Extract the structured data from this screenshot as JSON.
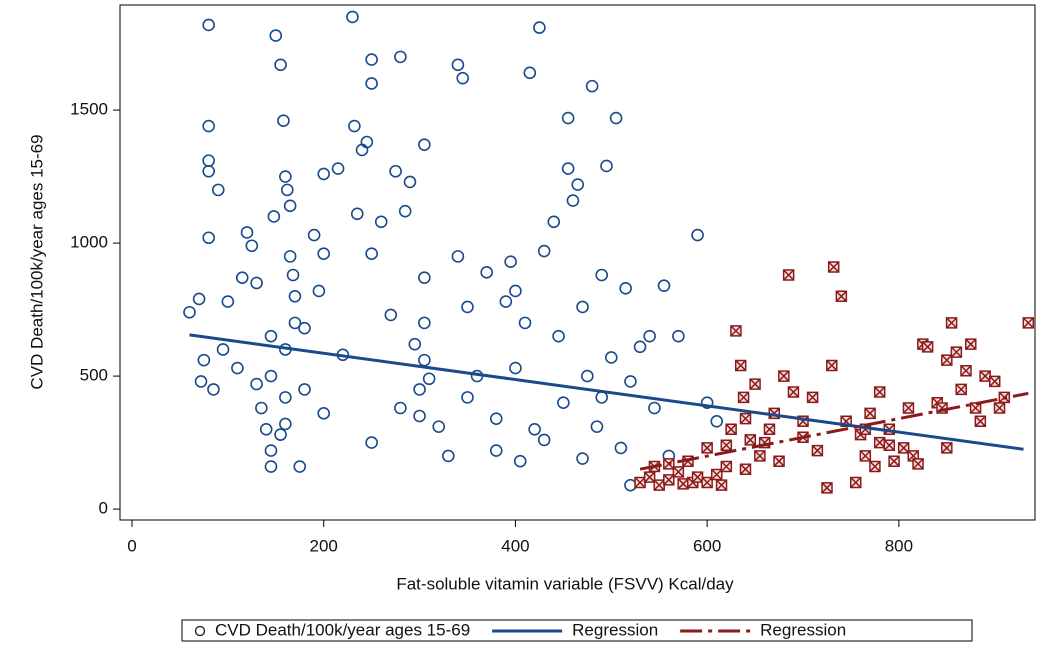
{
  "chart_data": {
    "type": "scatter",
    "xlabel": "Fat-soluble vitamin variable (FSVV) Kcal/day",
    "ylabel": "CVD Death/100k/year ages 15-69",
    "xlim": [
      -12.5,
      942
    ],
    "ylim": [
      -41,
      1895
    ],
    "xticks": [
      0,
      200,
      400,
      600,
      800
    ],
    "yticks": [
      0,
      500,
      1000,
      1500
    ],
    "legend": "bottom",
    "series": [
      {
        "name": "CVD Death/100k/year ages 15-69",
        "kind": "scatter",
        "marker": "circle",
        "color": "#1a4a8a",
        "x": [
          80,
          80,
          80,
          80,
          90,
          80,
          60,
          70,
          75,
          72,
          85,
          95,
          100,
          110,
          120,
          125,
          130,
          135,
          140,
          145,
          145,
          145,
          145,
          148,
          150,
          155,
          158,
          160,
          162,
          165,
          165,
          168,
          170,
          170,
          160,
          160,
          160,
          155,
          175,
          180,
          190,
          195,
          200,
          200,
          215,
          230,
          232,
          235,
          240,
          245,
          250,
          250,
          250,
          260,
          270,
          275,
          280,
          285,
          290,
          295,
          300,
          300,
          305,
          305,
          305,
          305,
          310,
          320,
          330,
          340,
          345,
          340,
          350,
          360,
          370,
          380,
          390,
          395,
          400,
          400,
          405,
          410,
          415,
          420,
          425,
          430,
          440,
          445,
          450,
          455,
          455,
          460,
          465,
          470,
          475,
          480,
          485,
          490,
          495,
          500,
          505,
          510,
          515,
          520,
          520,
          530,
          540,
          545,
          555,
          560,
          570,
          590,
          600,
          610,
          250,
          280,
          220,
          180,
          130,
          115,
          200,
          350,
          430,
          470,
          380,
          490
        ],
        "values": [
          1820,
          1440,
          1310,
          1270,
          1200,
          1020,
          740,
          790,
          560,
          480,
          450,
          600,
          780,
          530,
          1040,
          990,
          470,
          380,
          300,
          220,
          160,
          500,
          650,
          1100,
          1780,
          1670,
          1460,
          1250,
          1200,
          1140,
          950,
          880,
          800,
          700,
          600,
          420,
          320,
          280,
          160,
          450,
          1030,
          820,
          360,
          1260,
          1280,
          1850,
          1440,
          1110,
          1350,
          1380,
          1690,
          1600,
          960,
          1080,
          730,
          1270,
          1700,
          1120,
          1230,
          620,
          450,
          350,
          1370,
          870,
          700,
          560,
          490,
          310,
          200,
          1670,
          1620,
          950,
          760,
          500,
          890,
          220,
          780,
          930,
          820,
          530,
          180,
          700,
          1640,
          300,
          1810,
          970,
          1080,
          650,
          400,
          1470,
          1280,
          1160,
          1220,
          760,
          500,
          1590,
          310,
          880,
          1290,
          570,
          1470,
          230,
          830,
          480,
          90,
          610,
          650,
          380,
          840,
          200,
          650,
          1030,
          400,
          330,
          250,
          380,
          580,
          680,
          850,
          870,
          960,
          420,
          260,
          190,
          340,
          420
        ]
      },
      {
        "kind": "scatter",
        "marker": "square-x",
        "color": "#8b1a1a",
        "x": [
          530,
          540,
          550,
          560,
          570,
          575,
          580,
          585,
          590,
          600,
          610,
          615,
          620,
          625,
          630,
          635,
          638,
          640,
          645,
          650,
          655,
          660,
          665,
          670,
          675,
          680,
          685,
          690,
          700,
          710,
          715,
          725,
          730,
          732,
          740,
          745,
          755,
          760,
          765,
          770,
          775,
          780,
          790,
          795,
          805,
          810,
          815,
          820,
          825,
          830,
          840,
          845,
          850,
          855,
          860,
          865,
          870,
          875,
          880,
          885,
          890,
          900,
          905,
          910,
          935,
          620,
          640,
          600,
          560,
          545,
          765,
          790,
          850,
          780,
          700
        ],
        "values": [
          100,
          120,
          90,
          110,
          140,
          95,
          180,
          100,
          120,
          100,
          130,
          90,
          240,
          300,
          670,
          540,
          420,
          340,
          260,
          470,
          200,
          250,
          300,
          360,
          180,
          500,
          880,
          440,
          270,
          420,
          220,
          80,
          540,
          910,
          800,
          330,
          100,
          280,
          200,
          360,
          160,
          250,
          300,
          180,
          230,
          380,
          200,
          170,
          620,
          610,
          400,
          380,
          560,
          700,
          590,
          450,
          520,
          620,
          380,
          330,
          500,
          480,
          380,
          420,
          700,
          160,
          150,
          230,
          170,
          160,
          300,
          240,
          230,
          440,
          330
        ]
      },
      {
        "name": "Regression",
        "kind": "line",
        "color": "#1a4a8a",
        "x": [
          60,
          930
        ],
        "values": [
          655,
          225
        ]
      },
      {
        "name": "Regression",
        "kind": "line",
        "dash": true,
        "color": "#8b1a1a",
        "x": [
          530,
          935
        ],
        "values": [
          150,
          435
        ]
      }
    ]
  }
}
